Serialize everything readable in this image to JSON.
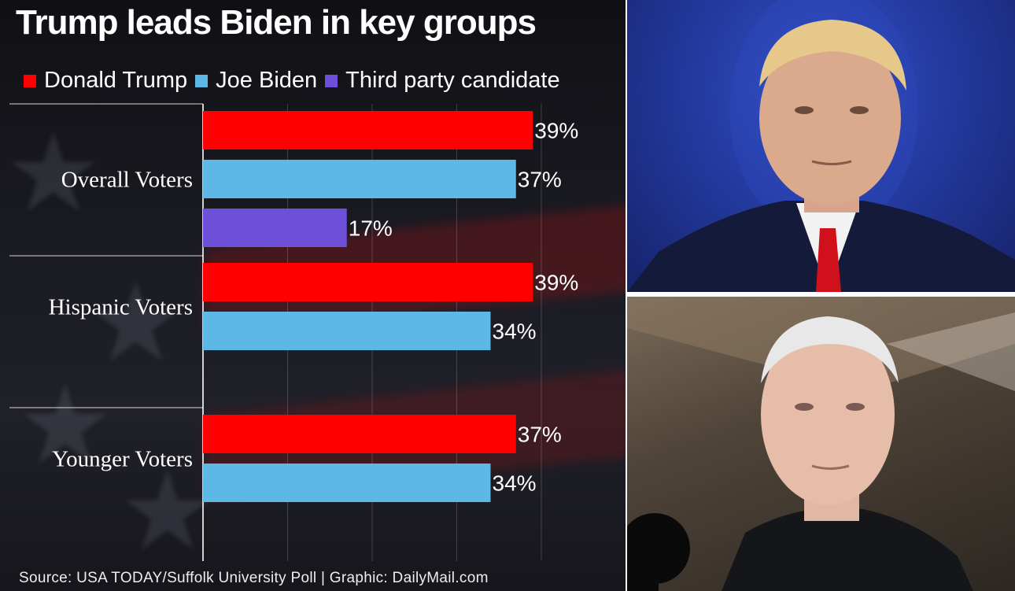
{
  "title": "Trump leads Biden in key groups",
  "source": "Source: USA TODAY/Suffolk University Poll  |  Graphic: DailyMail.com",
  "colors": {
    "trump": "#fe0000",
    "biden": "#5db8e8",
    "third": "#6d4fd8"
  },
  "legend": [
    {
      "label": "Donald Trump",
      "color": "#fe0000"
    },
    {
      "label": "Joe Biden",
      "color": "#5db8e8"
    },
    {
      "label": "Third party candidate",
      "color": "#6d4fd8"
    }
  ],
  "photos": {
    "top": "donald-trump-photo",
    "bottom": "joe-biden-photo"
  },
  "chart_data": {
    "type": "bar",
    "orientation": "horizontal",
    "title": "Trump leads Biden in key groups",
    "categories": [
      "Overall Voters",
      "Hispanic Voters",
      "Younger Voters"
    ],
    "series": [
      {
        "name": "Donald Trump",
        "color": "#fe0000",
        "values": [
          39,
          39,
          37
        ],
        "labels": [
          "39%",
          "39%",
          "37%"
        ]
      },
      {
        "name": "Joe Biden",
        "color": "#5db8e8",
        "values": [
          37,
          34,
          34
        ],
        "labels": [
          "37%",
          "34%",
          "34%"
        ]
      },
      {
        "name": "Third party candidate",
        "color": "#6d4fd8",
        "values": [
          17,
          null,
          null
        ],
        "labels": [
          "17%",
          null,
          null
        ]
      }
    ],
    "xlim": [
      0,
      50
    ],
    "grid": true,
    "legend_position": "top"
  }
}
